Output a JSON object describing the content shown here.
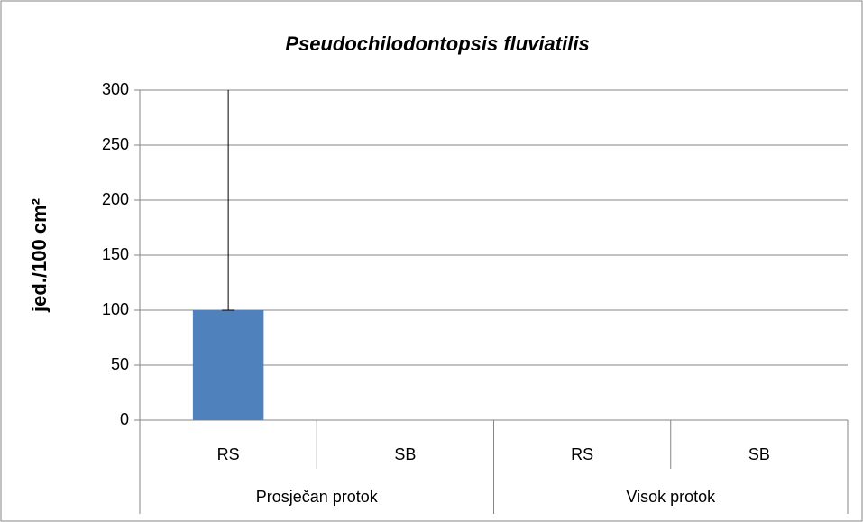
{
  "chart_data": {
    "type": "bar",
    "title": "Pseudochilodontopsis fluviatilis",
    "ylabel": "jed./100 cm²",
    "categories": [
      "RS",
      "SB",
      "RS",
      "SB"
    ],
    "groups": [
      "Prosječan protok",
      "Visok protok"
    ],
    "values": [
      100,
      0,
      0,
      0
    ],
    "errors": [
      200,
      0,
      0,
      0
    ],
    "color": "#4f81bd",
    "ylim": [
      0,
      300
    ],
    "yticks": [
      0,
      50,
      100,
      150,
      200,
      250,
      300
    ],
    "grid": true
  }
}
